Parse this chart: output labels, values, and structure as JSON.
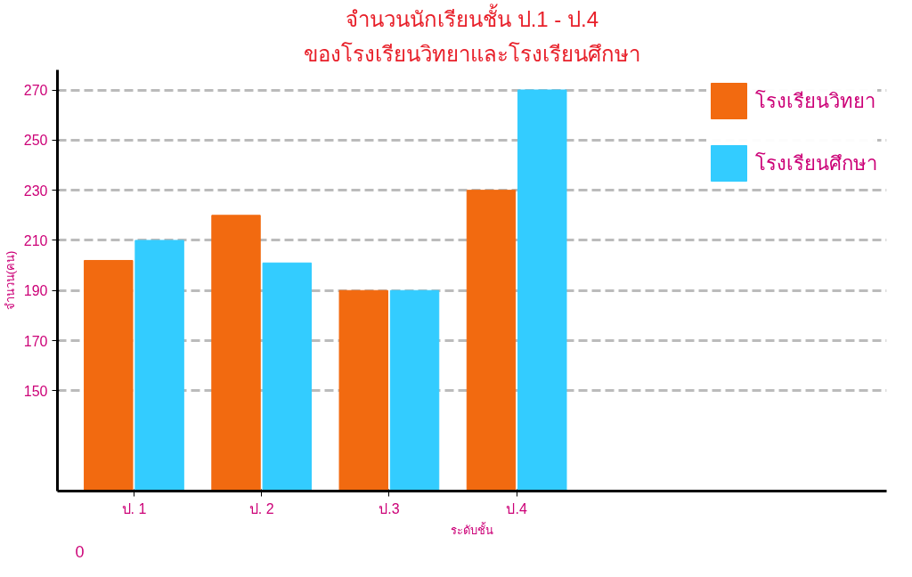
{
  "chart_data": {
    "type": "bar",
    "title": "จำนวนนักเรียนชั้น ป.1 - ป.4",
    "subtitle": "ของโรงเรียนวิทยาและโรงเรียนศึกษา",
    "xlabel": "ระดับชั้น",
    "ylabel": "จำนวน(คน)",
    "categories": [
      "ป. 1",
      "ป. 2",
      "ป.3",
      "ป.4"
    ],
    "series": [
      {
        "name": "โรงเรียนวิทยา",
        "color": "#f26a10",
        "values": [
          202,
          220,
          190,
          230
        ]
      },
      {
        "name": "โรงเรียนศึกษา",
        "color": "#33ccff",
        "values": [
          210,
          201,
          190,
          270
        ]
      }
    ],
    "ylim": [
      110,
      278
    ],
    "yticks": [
      150,
      170,
      190,
      210,
      230,
      250,
      270
    ],
    "grid": "y",
    "legend": "right",
    "annotations": [
      "0"
    ]
  }
}
